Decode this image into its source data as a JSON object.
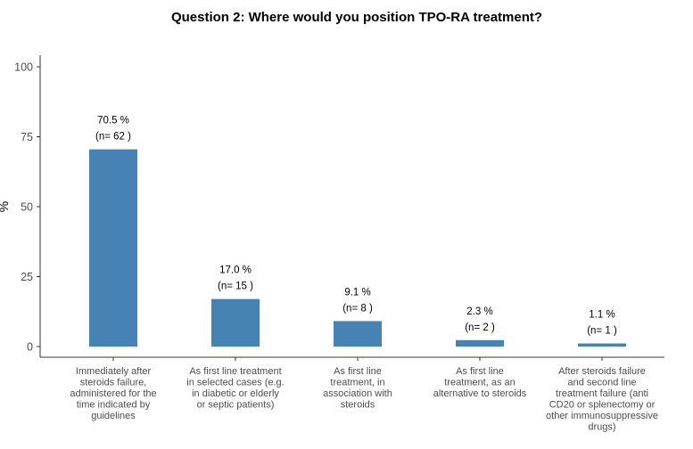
{
  "chart_data": {
    "type": "bar",
    "title": "Question 2: Where would you position TPO-RA treatment?",
    "ylabel": "%",
    "xlabel": "",
    "ylim": [
      0,
      100
    ],
    "yticks": [
      0,
      25,
      50,
      75,
      100
    ],
    "bar_color": "#4682b4",
    "grid": false,
    "categories": [
      [
        "Immediately after",
        "steroids failure,",
        "administered for the",
        "time indicated by",
        "guidelines"
      ],
      [
        "As first line treatment",
        "in selected cases (e.g.",
        "in diabetic or elderly",
        "or septic patients)"
      ],
      [
        "As first line",
        "treatment, in",
        "association with",
        "steroids"
      ],
      [
        "As first line",
        "treatment, as an",
        "alternative to steroids"
      ],
      [
        "After steroids failure",
        "and second line",
        "treatment failure (anti",
        "CD20 or splenectomy or",
        "other immunosuppressive",
        "drugs)"
      ]
    ],
    "values": [
      70.5,
      17.0,
      9.1,
      2.3,
      1.1
    ],
    "percent_labels": [
      "70.5 %",
      "17.0 %",
      "9.1 %",
      "2.3 %",
      "1.1 %"
    ],
    "n_labels": [
      "(n= 62 )",
      "(n= 15 )",
      "(n= 8 )",
      "(n= 2 )",
      "(n= 1 )"
    ]
  }
}
